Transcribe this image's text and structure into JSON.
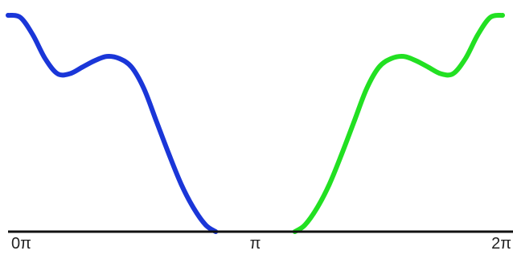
{
  "chart_data": {
    "type": "line",
    "title": "",
    "xlabel": "",
    "ylabel": "",
    "xlim": [
      0,
      2
    ],
    "ylim": [
      0,
      1
    ],
    "x_unit": "π",
    "grid": false,
    "x_tick_labels": [
      {
        "value": 0,
        "label": "0π"
      },
      {
        "value": 1,
        "label": "π"
      },
      {
        "value": 2,
        "label": "2π"
      }
    ],
    "series": [
      {
        "color": "#1a36d8",
        "x": [
          0,
          0.05,
          0.1,
          0.15,
          0.2,
          0.25,
          0.3,
          0.35,
          0.4,
          0.45,
          0.5,
          0.55,
          0.6,
          0.65,
          0.7,
          0.75,
          0.8,
          0.84
        ],
        "y": [
          1.0,
          0.99,
          0.91,
          0.8,
          0.73,
          0.73,
          0.76,
          0.79,
          0.81,
          0.8,
          0.76,
          0.66,
          0.51,
          0.36,
          0.22,
          0.11,
          0.03,
          0.0
        ]
      },
      {
        "color": "#22e022",
        "x": [
          1.16,
          1.2,
          1.25,
          1.3,
          1.35,
          1.4,
          1.45,
          1.5,
          1.55,
          1.6,
          1.65,
          1.7,
          1.75,
          1.8,
          1.85,
          1.9,
          1.95,
          2.0
        ],
        "y": [
          0.0,
          0.03,
          0.11,
          0.22,
          0.36,
          0.51,
          0.66,
          0.76,
          0.8,
          0.81,
          0.79,
          0.76,
          0.73,
          0.73,
          0.8,
          0.91,
          0.99,
          1.0
        ]
      }
    ]
  }
}
